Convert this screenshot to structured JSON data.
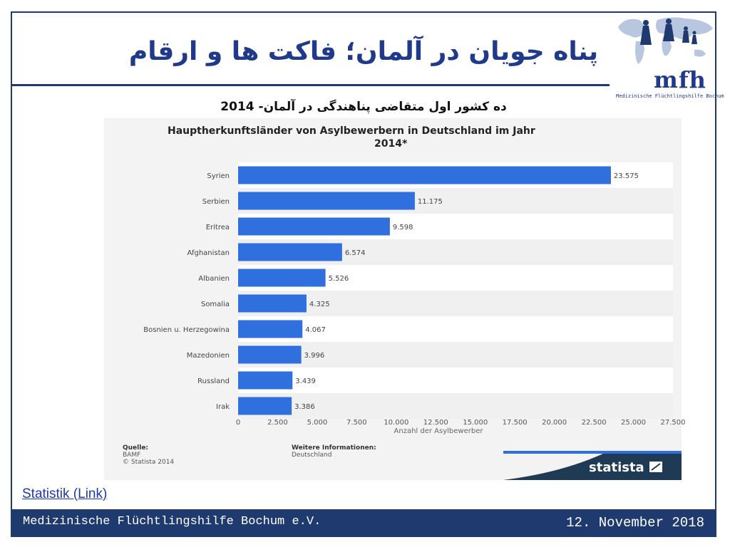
{
  "slide": {
    "title": "پناه جویان در آلمان؛ فاکت ها و ارقام",
    "subtitle": "ده کشور اول متقاضی پناهندگی در آلمان- 2014",
    "link_text": "Statistik (Link)"
  },
  "logo": {
    "mark": "mfh",
    "subtitle": "Medizinische Flüchtlingshilfe Bochum",
    "icon": "world-map-family-icon"
  },
  "footer": {
    "org": "Medizinische Flüchtlingshilfe Bochum e.V.",
    "date": "12. November 2018"
  },
  "chart_data": {
    "type": "bar",
    "orientation": "horizontal",
    "title": "Hauptherkunftsländer von Asylbewerbern in Deutschland im Jahr 2014*",
    "categories": [
      "Syrien",
      "Serbien",
      "Eritrea",
      "Afghanistan",
      "Albanien",
      "Somalia",
      "Bosnien u. Herzegowina",
      "Mazedonien",
      "Russland",
      "Irak"
    ],
    "values": [
      23575,
      11175,
      9598,
      6574,
      5526,
      4325,
      4067,
      3996,
      3439,
      3386
    ],
    "value_labels": [
      "23.575",
      "11.175",
      "9.598",
      "6.574",
      "5.526",
      "4.325",
      "4.067",
      "3.996",
      "3.439",
      "3.386"
    ],
    "xlabel": "Anzahl der Asylbewerber",
    "xlim": [
      0,
      27500
    ],
    "ticks": [
      0,
      2500,
      5000,
      7500,
      10000,
      12500,
      15000,
      17500,
      20000,
      22500,
      25000,
      27500
    ],
    "tick_labels": [
      "0",
      "2.500",
      "5.000",
      "7.500",
      "10.000",
      "12.500",
      "15.000",
      "17.500",
      "20.000",
      "22.500",
      "25.000",
      "27.500"
    ],
    "bar_color": "#2f6fde",
    "source_heading": "Quelle:",
    "source_lines": [
      "BAMF",
      "© Statista 2014"
    ],
    "info_heading": "Weitere Informationen:",
    "info_lines": [
      "Deutschland"
    ],
    "brand": "statista",
    "brand_color": "#1f3a55",
    "accent_color": "#2f6fde"
  }
}
